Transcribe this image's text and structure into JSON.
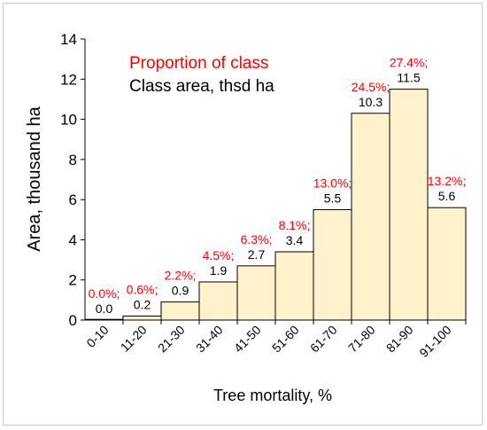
{
  "chart_data": {
    "type": "bar",
    "xlabel": "Tree mortality, %",
    "ylabel": "Area, thousand ha",
    "ylim": [
      0,
      14
    ],
    "yticks": [
      0,
      2,
      4,
      6,
      8,
      10,
      12,
      14
    ],
    "categories": [
      "0-10",
      "11-20",
      "21-30",
      "31-40",
      "41-50",
      "51-60",
      "61-70",
      "71-80",
      "81-90",
      "91-100"
    ],
    "values": [
      0.0,
      0.2,
      0.9,
      1.9,
      2.7,
      3.4,
      5.5,
      10.3,
      11.5,
      5.6
    ],
    "value_labels": [
      "0.0",
      "0.2",
      "0.9",
      "1.9",
      "2.7",
      "3.4",
      "5.5",
      "10.3",
      "11.5",
      "5.6"
    ],
    "proportion_labels": [
      "0.0%;",
      "0.6%;",
      "2.2%;",
      "4.5%;",
      "6.3%;",
      "8.1%;",
      "13.0%;",
      "24.5%;",
      "27.4%;",
      "13.2%;"
    ],
    "legend": {
      "proportion": "Proportion  of class",
      "area": "Class area, thsd ha"
    },
    "colors": {
      "bar_fill": "#fff2cc",
      "bar_stroke": "#000000",
      "proportion_text": "#ff0000",
      "value_text": "#000000"
    },
    "grid": false,
    "legend_placement": "top-left"
  }
}
